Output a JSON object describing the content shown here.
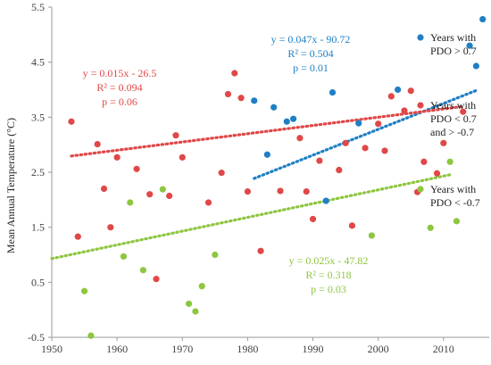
{
  "chart_data": {
    "type": "scatter",
    "title": "",
    "xlabel": "",
    "ylabel": "Mean Annual Temperature (°C)",
    "xlim": [
      1950,
      2017
    ],
    "ylim": [
      -0.5,
      5.5
    ],
    "xticks": [
      "1950",
      "1960",
      "1970",
      "1980",
      "1990",
      "2000",
      "2010"
    ],
    "yticks": [
      "-0.5",
      "0.5",
      "1.5",
      "2.5",
      "3.5",
      "4.5",
      "5.5"
    ],
    "grid": false,
    "legend_position": "right",
    "series": [
      {
        "name": "Years with PDO > 0.7",
        "legend_lines": [
          "Years with",
          "PDO > 0.7"
        ],
        "color": "#1f7fc4",
        "points": [
          [
            1981,
            3.8
          ],
          [
            1983,
            2.82
          ],
          [
            1984,
            3.68
          ],
          [
            1986,
            3.42
          ],
          [
            1987,
            3.47
          ],
          [
            1992,
            1.98
          ],
          [
            1993,
            3.95
          ],
          [
            1997,
            3.39
          ],
          [
            2003,
            4.0
          ],
          [
            2014,
            4.8
          ],
          [
            2015,
            4.43
          ],
          [
            2016,
            5.28
          ]
        ],
        "trend": {
          "slope": 0.047,
          "intercept": -90.72,
          "x_start": 1981,
          "x_end": 2015
        },
        "annotation": [
          "y = 0.047x - 90.72",
          "R² = 0.504",
          "p = 0.01"
        ]
      },
      {
        "name": "Years with PDO < 0.7 and > -0.7",
        "legend_lines": [
          "Years with",
          "PDO < 0.7",
          "and > -0.7"
        ],
        "color": "#e04848",
        "points": [
          [
            1953,
            3.42
          ],
          [
            1954,
            1.33
          ],
          [
            1957,
            3.01
          ],
          [
            1958,
            2.2
          ],
          [
            1959,
            1.5
          ],
          [
            1960,
            2.77
          ],
          [
            1963,
            2.56
          ],
          [
            1965,
            2.1
          ],
          [
            1966,
            0.56
          ],
          [
            1968,
            2.07
          ],
          [
            1969,
            3.17
          ],
          [
            1970,
            2.77
          ],
          [
            1974,
            1.95
          ],
          [
            1976,
            2.49
          ],
          [
            1977,
            3.92
          ],
          [
            1978,
            4.3
          ],
          [
            1979,
            3.85
          ],
          [
            1980,
            2.15
          ],
          [
            1982,
            1.07
          ],
          [
            1985,
            2.16
          ],
          [
            1988,
            3.12
          ],
          [
            1989,
            2.15
          ],
          [
            1990,
            1.65
          ],
          [
            1991,
            2.71
          ],
          [
            1994,
            2.54
          ],
          [
            1995,
            3.03
          ],
          [
            1996,
            1.53
          ],
          [
            1998,
            2.94
          ],
          [
            2000,
            3.38
          ],
          [
            2001,
            2.89
          ],
          [
            2002,
            3.88
          ],
          [
            2004,
            3.62
          ],
          [
            2005,
            3.98
          ],
          [
            2006,
            2.14
          ],
          [
            2007,
            2.69
          ],
          [
            2009,
            2.48
          ],
          [
            2010,
            3.03
          ],
          [
            2013,
            3.6
          ]
        ],
        "trend": {
          "slope": 0.015,
          "intercept": -26.5,
          "x_start": 1953,
          "x_end": 2013
        },
        "annotation": [
          "y = 0.015x - 26.5",
          "R² = 0.094",
          "p = 0.06"
        ]
      },
      {
        "name": "Years with PDO < -0.7",
        "legend_lines": [
          "Years with",
          "PDO < -0.7"
        ],
        "color": "#8dc63f",
        "points": [
          [
            1955,
            0.34
          ],
          [
            1956,
            -0.47
          ],
          [
            1961,
            0.97
          ],
          [
            1962,
            1.95
          ],
          [
            1964,
            0.72
          ],
          [
            1967,
            2.19
          ],
          [
            1971,
            0.11
          ],
          [
            1972,
            -0.03
          ],
          [
            1973,
            0.43
          ],
          [
            1975,
            1.0
          ],
          [
            1999,
            1.35
          ],
          [
            2008,
            1.49
          ],
          [
            2011,
            2.69
          ],
          [
            2012,
            1.61
          ]
        ],
        "trend": {
          "slope": 0.025,
          "intercept": -47.82,
          "x_start": 1950,
          "x_end": 2011
        },
        "annotation": [
          "y = 0.025x - 47.82",
          "R² = 0.318",
          "p = 0.03"
        ]
      }
    ]
  }
}
